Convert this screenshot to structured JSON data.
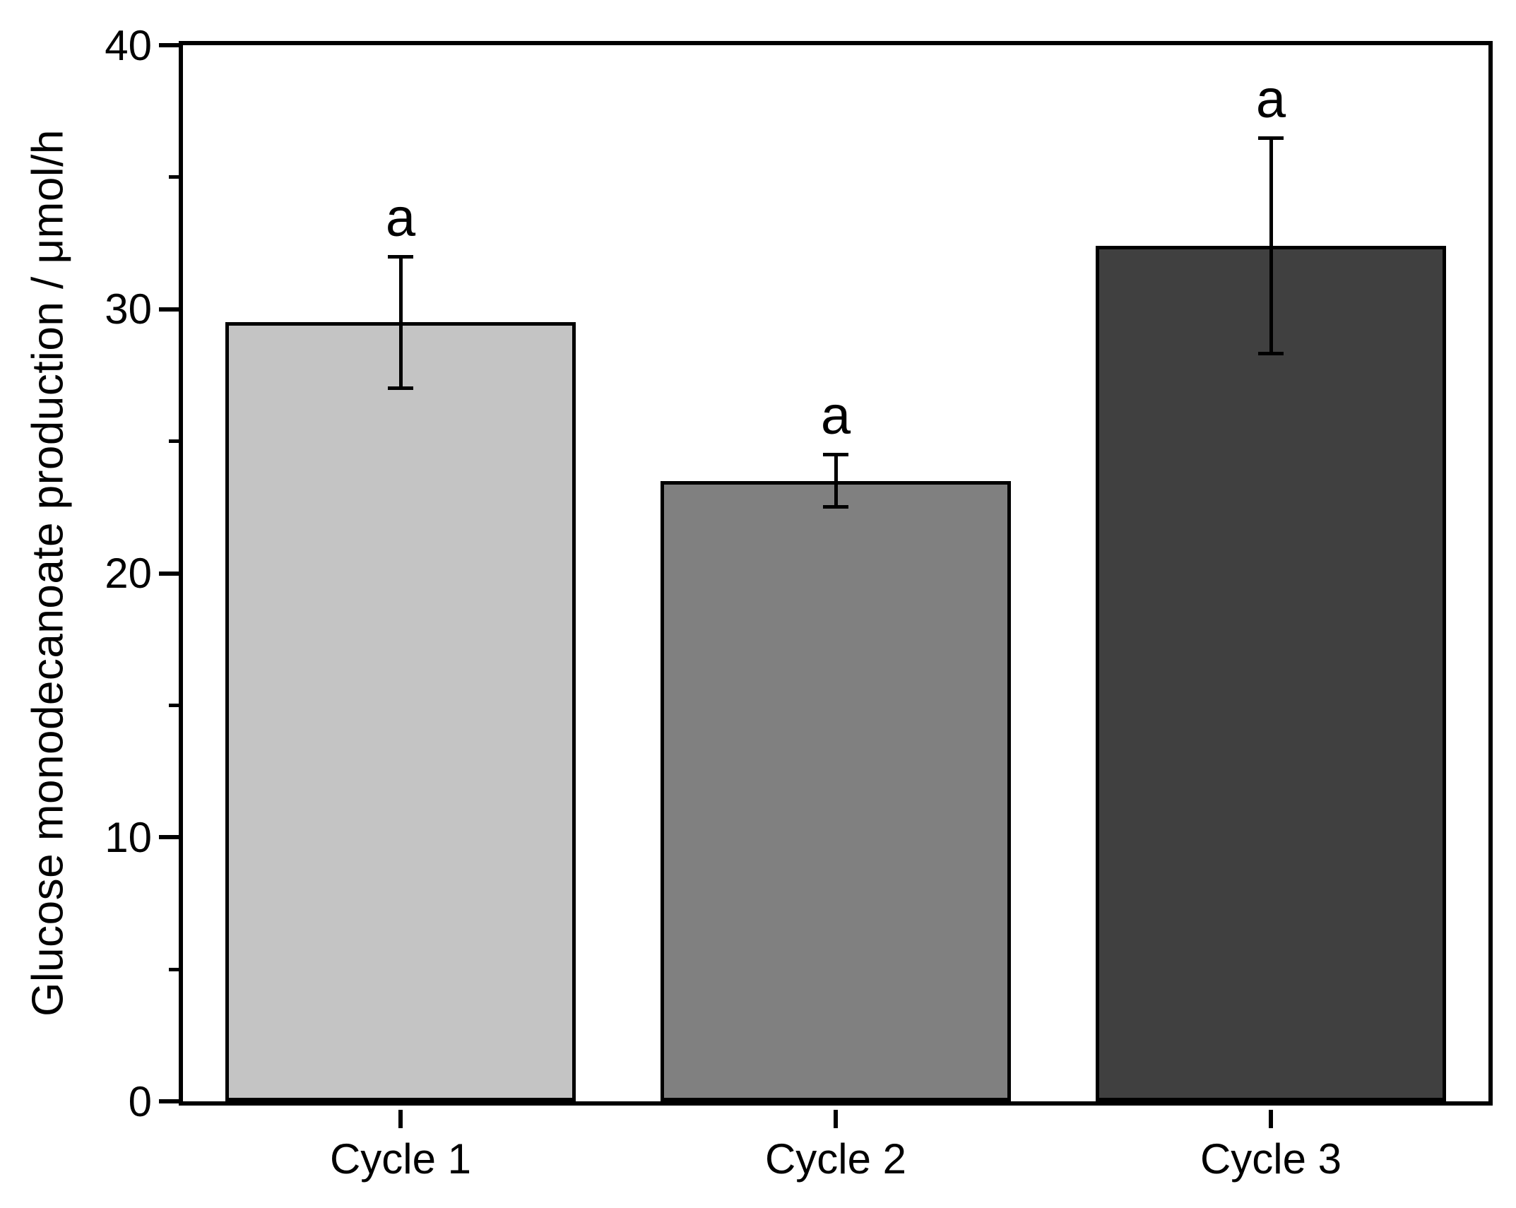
{
  "chart_data": {
    "type": "bar",
    "categories": [
      "Cycle 1",
      "Cycle 2",
      "Cycle 3"
    ],
    "values": [
      29.5,
      23.5,
      32.4
    ],
    "error_bars": [
      2.5,
      1.0,
      4.1
    ],
    "significance_labels": [
      "a",
      "a",
      "a"
    ],
    "ylabel": "Glucose monodecanoate production / μmol/h",
    "xlabel": "",
    "ylim": [
      0,
      40
    ],
    "yticks_major": [
      0,
      10,
      20,
      30,
      40
    ],
    "yticks_minor": [
      5,
      15,
      25,
      35
    ],
    "grid": false,
    "legend": null,
    "bar_fill_colors": [
      "#c4c4c4",
      "#808080",
      "#404040"
    ],
    "bar_outline_color": "#000000",
    "axis_color": "#000000",
    "background_color": "#ffffff"
  }
}
